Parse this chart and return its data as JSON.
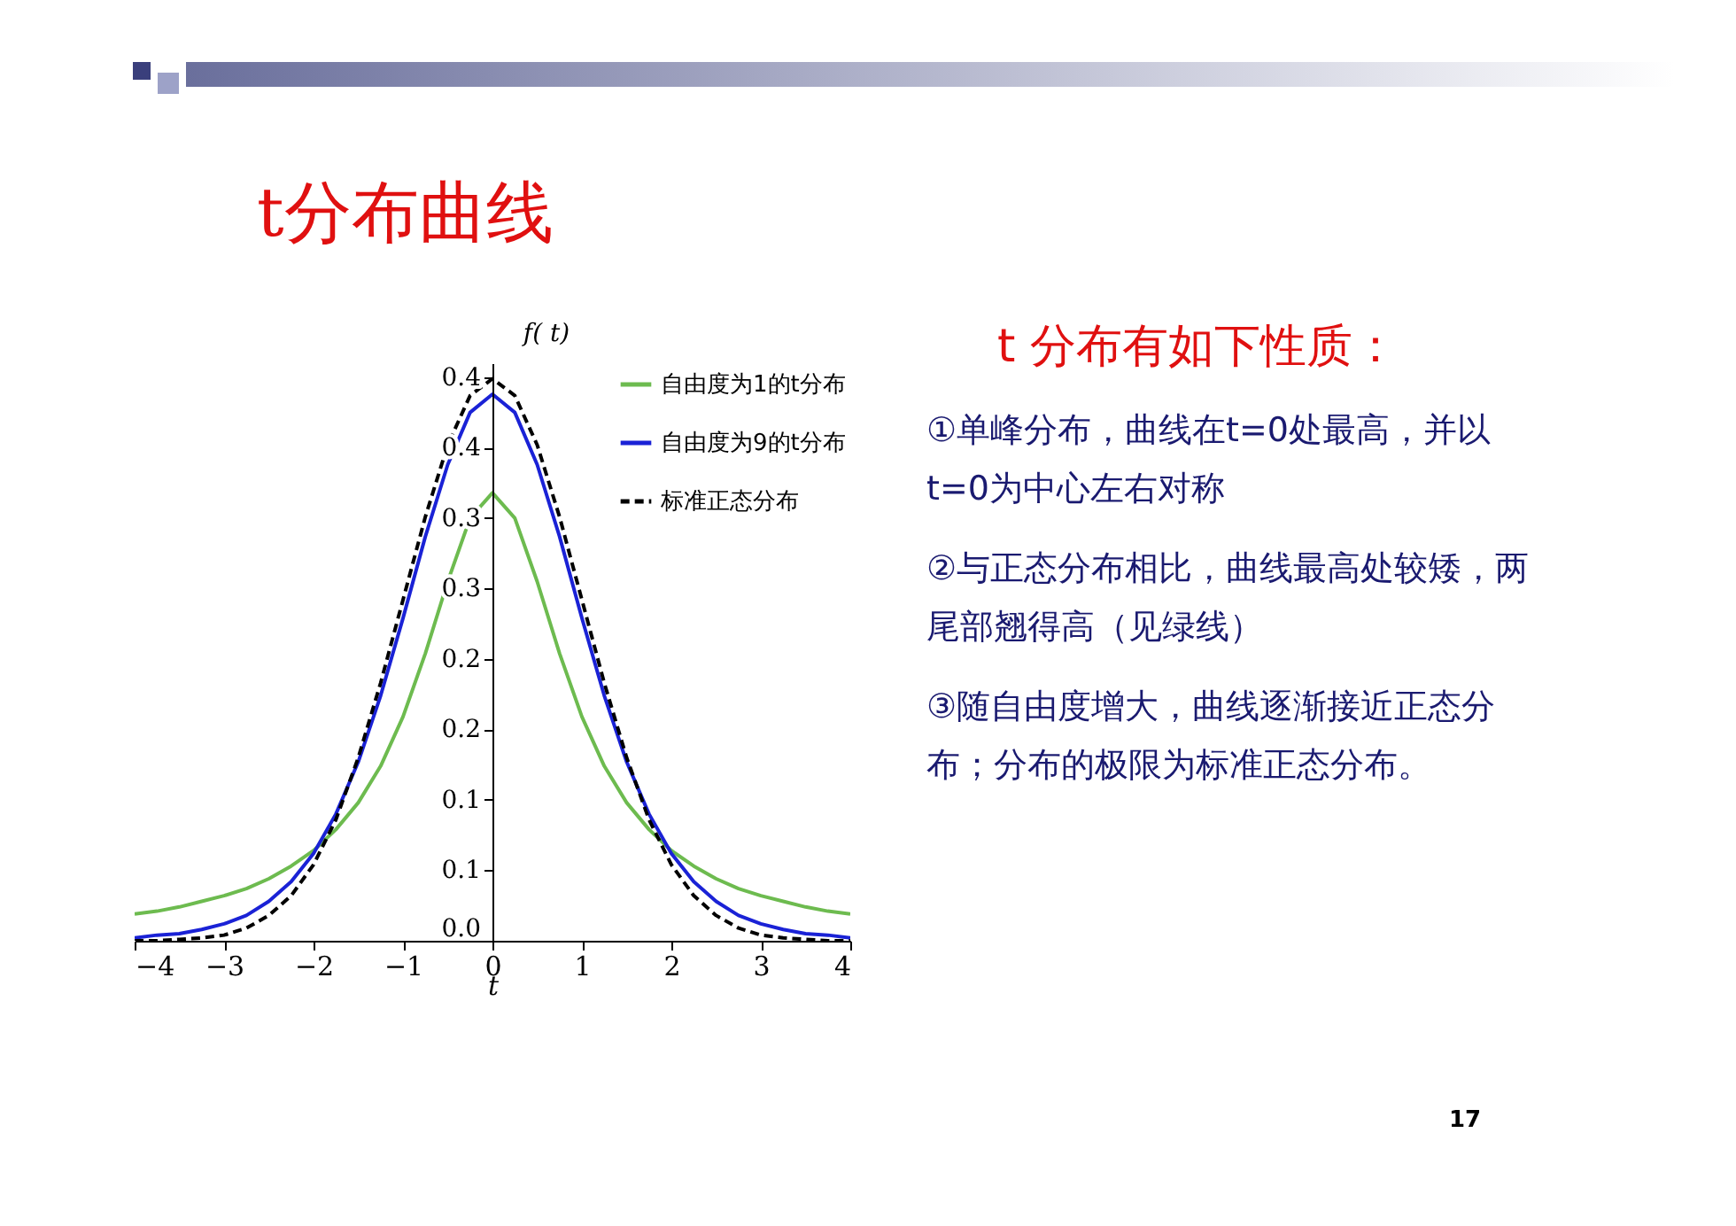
{
  "chart_data": {
    "type": "line",
    "title": "t分布曲线",
    "xlabel": "t",
    "ylabel": "f( t)",
    "x": [
      -4,
      -3.75,
      -3.5,
      -3.25,
      -3,
      -2.75,
      -2.5,
      -2.25,
      -2,
      -1.75,
      -1.5,
      -1.25,
      -1,
      -0.75,
      -0.5,
      -0.25,
      0,
      0.25,
      0.5,
      0.75,
      1,
      1.25,
      1.5,
      1.75,
      2,
      2.25,
      2.5,
      2.75,
      3,
      3.25,
      3.5,
      3.75,
      4
    ],
    "series": [
      {
        "name": "自由度为1的t分布",
        "color": "#6dbb4f",
        "line_style": "solid",
        "values": [
          0.019,
          0.021,
          0.024,
          0.028,
          0.032,
          0.037,
          0.044,
          0.053,
          0.064,
          0.079,
          0.098,
          0.124,
          0.159,
          0.204,
          0.255,
          0.3,
          0.318,
          0.3,
          0.255,
          0.204,
          0.159,
          0.124,
          0.098,
          0.079,
          0.064,
          0.053,
          0.044,
          0.037,
          0.032,
          0.028,
          0.024,
          0.021,
          0.019
        ]
      },
      {
        "name": "自由度为9的t分布",
        "color": "#1a22d6",
        "line_style": "solid",
        "values": [
          0.002,
          0.004,
          0.005,
          0.008,
          0.012,
          0.018,
          0.028,
          0.042,
          0.062,
          0.09,
          0.127,
          0.174,
          0.229,
          0.287,
          0.338,
          0.375,
          0.388,
          0.375,
          0.338,
          0.287,
          0.229,
          0.174,
          0.127,
          0.09,
          0.062,
          0.042,
          0.028,
          0.018,
          0.012,
          0.008,
          0.005,
          0.004,
          0.002
        ]
      },
      {
        "name": "标准正态分布",
        "color": "#000000",
        "line_style": "dashed",
        "values": [
          0.0,
          0.0,
          0.001,
          0.002,
          0.004,
          0.009,
          0.018,
          0.032,
          0.054,
          0.086,
          0.13,
          0.183,
          0.242,
          0.301,
          0.352,
          0.387,
          0.399,
          0.387,
          0.352,
          0.301,
          0.242,
          0.183,
          0.13,
          0.086,
          0.054,
          0.032,
          0.018,
          0.009,
          0.004,
          0.002,
          0.001,
          0.0,
          0.0
        ]
      }
    ],
    "xlim": [
      -4,
      4
    ],
    "xticks": [
      -4,
      -3,
      -2,
      -1,
      0,
      1,
      2,
      3,
      4
    ],
    "ylim": [
      0,
      0.41
    ],
    "yticks": [
      {
        "value": 0,
        "label": "0.0"
      },
      {
        "value": 0.05,
        "label": "0.1"
      },
      {
        "value": 0.1,
        "label": "0.1"
      },
      {
        "value": 0.15,
        "label": "0.2"
      },
      {
        "value": 0.2,
        "label": "0.2"
      },
      {
        "value": 0.25,
        "label": "0.3"
      },
      {
        "value": 0.3,
        "label": "0.3"
      },
      {
        "value": 0.35,
        "label": "0.4"
      },
      {
        "value": 0.4,
        "label": "0.4"
      }
    ],
    "grid": false,
    "legend": "top right",
    "marker": "none",
    "annotations": [
      "t 分布有如下性质：",
      "①单峰分布，曲线在t=0处最高，并以t=0为中心左右对称",
      "②与正态分布相比，曲线最高处较矮，两尾部翘得高（见绿线）",
      "③随自由度增大，曲线逐渐接近正态分布；分布的极限为标准正态分布。",
      "17"
    ]
  }
}
